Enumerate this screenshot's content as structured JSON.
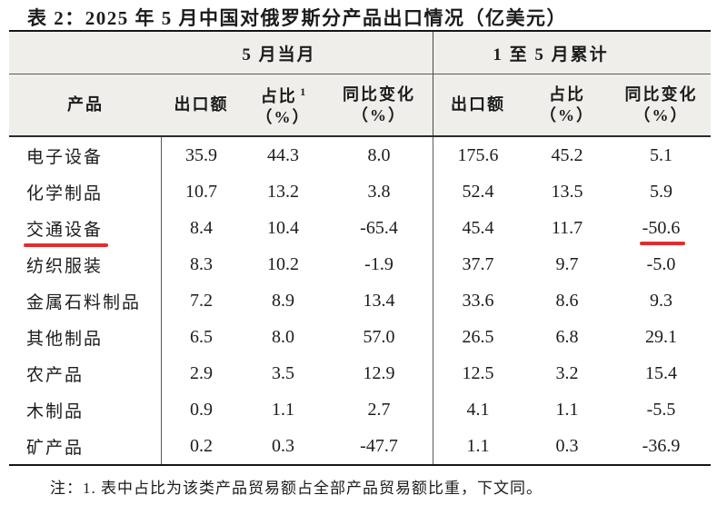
{
  "title": "表 2：2025 年 5 月中国对俄罗斯分产品出口情况（亿美元）",
  "note": "注：1. 表中占比为该类产品贸易额占全部产品贸易额比重，下文同。",
  "colors": {
    "accent_red": "#e22d2d",
    "rule_dark": "#161616",
    "rule_mid": "#4a4a4a",
    "header_bg": "#efeeeb",
    "text": "#1c1c1c"
  },
  "table": {
    "group_headers": {
      "month": "5 月当月",
      "cumulative": "1 至 5 月累计"
    },
    "column_headers": {
      "product": "产品",
      "export": "出口额",
      "share": "占比",
      "share_footnote_mark": "1",
      "share_unit": "（%）",
      "yoy": "同比变化",
      "yoy_unit": "（%）"
    },
    "rows": [
      {
        "product": "电子设备",
        "m_export": "35.9",
        "m_share": "44.3",
        "m_yoy": "8.0",
        "c_export": "175.6",
        "c_share": "45.2",
        "c_yoy": "5.1",
        "underline_product": false,
        "underline_c_yoy": false
      },
      {
        "product": "化学制品",
        "m_export": "10.7",
        "m_share": "13.2",
        "m_yoy": "3.8",
        "c_export": "52.4",
        "c_share": "13.5",
        "c_yoy": "5.9",
        "underline_product": false,
        "underline_c_yoy": false
      },
      {
        "product": "交通设备",
        "m_export": "8.4",
        "m_share": "10.4",
        "m_yoy": "-65.4",
        "c_export": "45.4",
        "c_share": "11.7",
        "c_yoy": "-50.6",
        "underline_product": true,
        "underline_c_yoy": true
      },
      {
        "product": "纺织服装",
        "m_export": "8.3",
        "m_share": "10.2",
        "m_yoy": "-1.9",
        "c_export": "37.7",
        "c_share": "9.7",
        "c_yoy": "-5.0",
        "underline_product": false,
        "underline_c_yoy": false
      },
      {
        "product": "金属石料制品",
        "m_export": "7.2",
        "m_share": "8.9",
        "m_yoy": "13.4",
        "c_export": "33.6",
        "c_share": "8.6",
        "c_yoy": "9.3",
        "underline_product": false,
        "underline_c_yoy": false
      },
      {
        "product": "其他制品",
        "m_export": "6.5",
        "m_share": "8.0",
        "m_yoy": "57.0",
        "c_export": "26.5",
        "c_share": "6.8",
        "c_yoy": "29.1",
        "underline_product": false,
        "underline_c_yoy": false
      },
      {
        "product": "农产品",
        "m_export": "2.9",
        "m_share": "3.5",
        "m_yoy": "12.9",
        "c_export": "12.5",
        "c_share": "3.2",
        "c_yoy": "15.4",
        "underline_product": false,
        "underline_c_yoy": false
      },
      {
        "product": "木制品",
        "m_export": "0.9",
        "m_share": "1.1",
        "m_yoy": "2.7",
        "c_export": "4.1",
        "c_share": "1.1",
        "c_yoy": "-5.5",
        "underline_product": false,
        "underline_c_yoy": false
      },
      {
        "product": "矿产品",
        "m_export": "0.2",
        "m_share": "0.3",
        "m_yoy": "-47.7",
        "c_export": "1.1",
        "c_share": "0.3",
        "c_yoy": "-36.9",
        "underline_product": false,
        "underline_c_yoy": false
      }
    ]
  }
}
